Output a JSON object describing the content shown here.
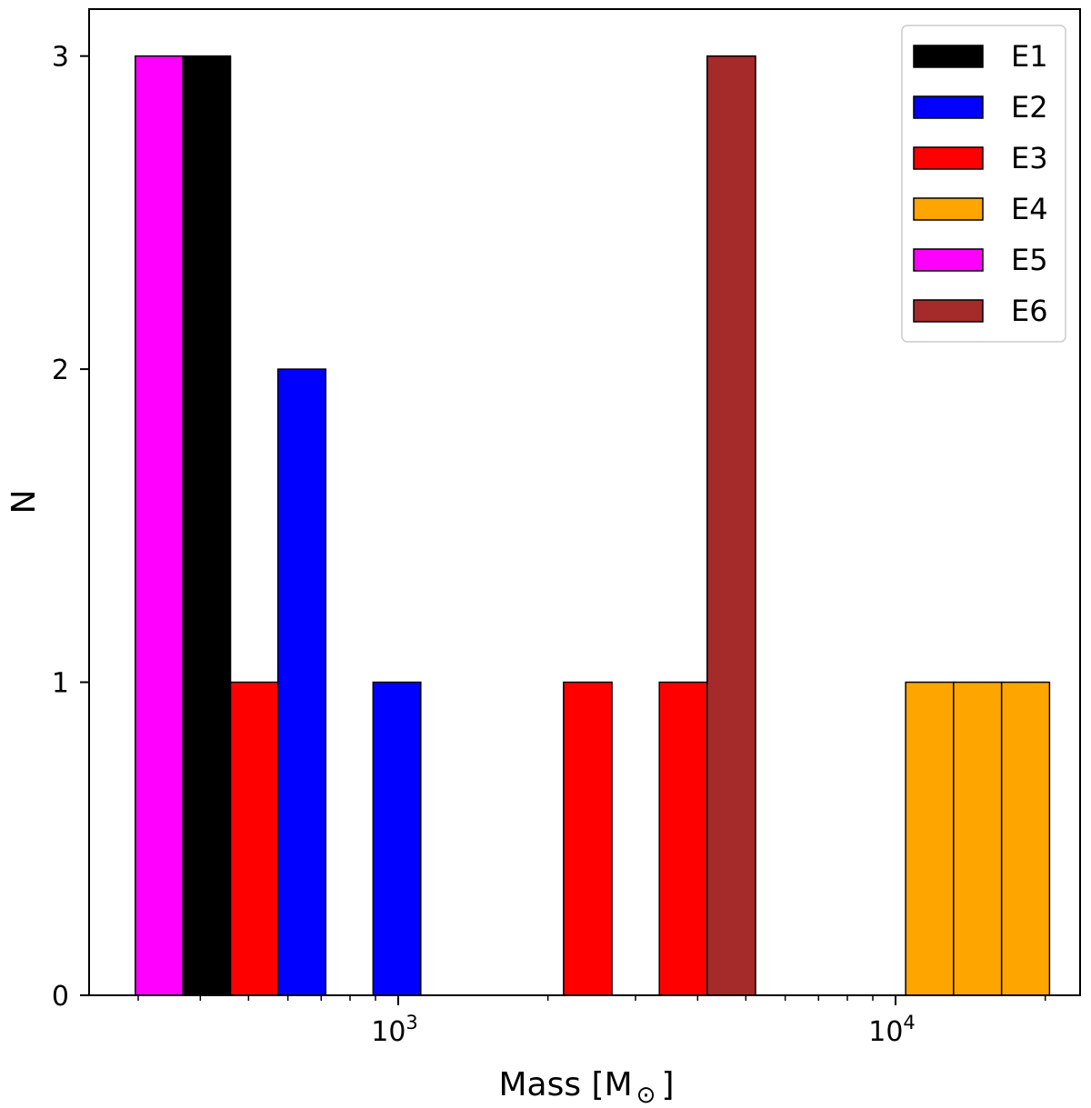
{
  "chart_data": {
    "type": "bar",
    "title": "",
    "xlabel": "Mass [M",
    "xlabel_sub": "⊙",
    "xlabel_close": "]",
    "ylabel": "N",
    "xscale": "log",
    "xlim": [
      239,
      23500
    ],
    "ylim": [
      0,
      3.15
    ],
    "yticks": [
      0,
      1,
      2,
      3
    ],
    "ytick_labels": [
      "0",
      "1",
      "2",
      "3"
    ],
    "xtick_labels": [
      {
        "value": 1000,
        "base": "10",
        "exp": "3"
      },
      {
        "value": 10000,
        "base": "10",
        "exp": "4"
      }
    ],
    "x_minor_ticks": [
      300,
      400,
      500,
      600,
      700,
      800,
      900,
      2000,
      3000,
      4000,
      5000,
      6000,
      7000,
      8000,
      9000,
      20000
    ],
    "legend_position": "top-right",
    "series": [
      {
        "name": "E1",
        "color": "#000000",
        "bars": [
          {
            "x0": 369,
            "x1": 460,
            "count": 3
          }
        ]
      },
      {
        "name": "E2",
        "color": "#0000ff",
        "bars": [
          {
            "x0": 573,
            "x1": 715,
            "count": 2
          },
          {
            "x0": 890,
            "x1": 1110,
            "count": 1
          }
        ]
      },
      {
        "name": "E3",
        "color": "#ff0000",
        "bars": [
          {
            "x0": 460,
            "x1": 573,
            "count": 1
          },
          {
            "x0": 2150,
            "x1": 2690,
            "count": 1
          },
          {
            "x0": 3350,
            "x1": 4180,
            "count": 1
          }
        ]
      },
      {
        "name": "E4",
        "color": "#ffa500",
        "bars": [
          {
            "x0": 10480,
            "x1": 13080,
            "count": 1
          },
          {
            "x0": 13080,
            "x1": 16340,
            "count": 1
          },
          {
            "x0": 16340,
            "x1": 20400,
            "count": 1
          }
        ]
      },
      {
        "name": "E5",
        "color": "#ff00ff",
        "bars": [
          {
            "x0": 296,
            "x1": 369,
            "count": 3
          }
        ]
      },
      {
        "name": "E6",
        "color": "#a52a2a",
        "bars": [
          {
            "x0": 4180,
            "x1": 5230,
            "count": 3
          }
        ]
      }
    ]
  }
}
